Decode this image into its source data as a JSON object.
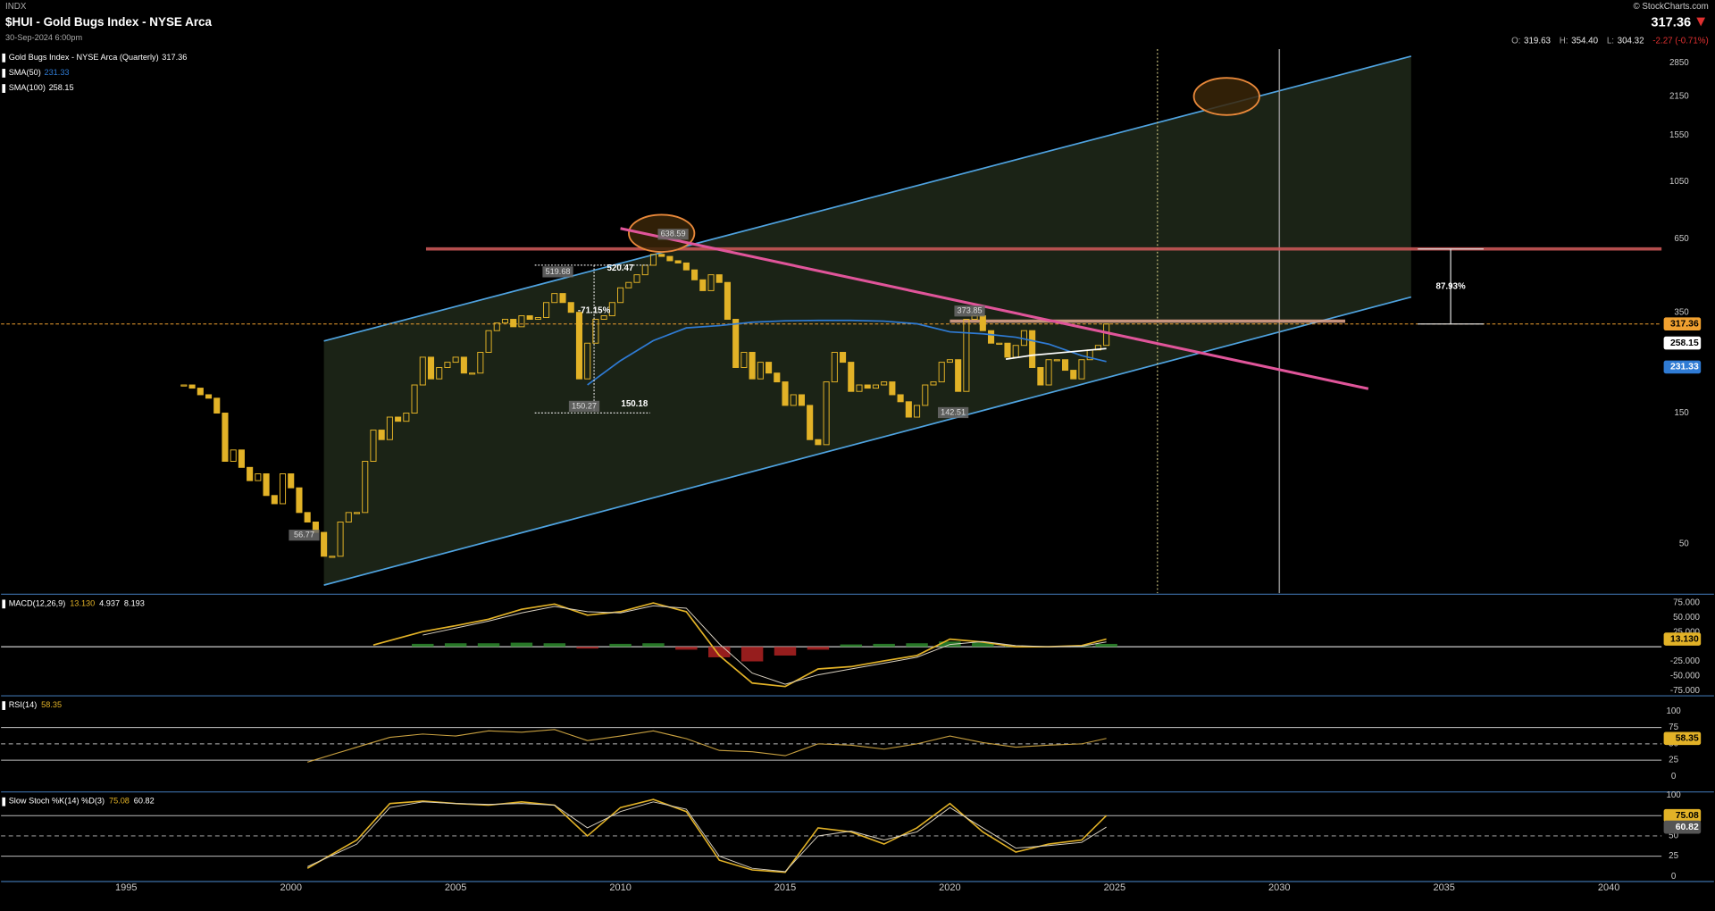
{
  "header": {
    "exchange": "INDX",
    "title": "$HUI - Gold Bugs Index - NYSE Arca",
    "date": "30-Sep-2024 6:00pm",
    "brand": "© StockCharts.com",
    "last": "317.36",
    "quote": [
      {
        "key": "O:",
        "text": "319.63"
      },
      {
        "key": "H:",
        "text": "354.40"
      },
      {
        "key": "L:",
        "text": "304.32"
      },
      {
        "key": "",
        "text": "-2.27 (-0.71%)",
        "down": true
      }
    ]
  },
  "chart_data": [
    {
      "type": "candlestick",
      "log": true,
      "xlim": [
        1991.2,
        2041.6
      ],
      "ylim": [
        33,
        3200
      ],
      "xticks": [
        1995,
        2000,
        2005,
        2010,
        2015,
        2020,
        2025,
        2030,
        2035,
        2040
      ],
      "yticks": [
        50,
        150,
        350,
        650,
        1050,
        1550,
        2150,
        2850
      ],
      "x": [
        1996.75,
        1997,
        1997.25,
        1997.5,
        1997.75,
        1998,
        1998.25,
        1998.5,
        1998.75,
        1999,
        1999.25,
        1999.5,
        1999.75,
        2000,
        2000.25,
        2000.5,
        2000.75,
        2001,
        2001.25,
        2001.5,
        2001.75,
        2002,
        2002.25,
        2002.5,
        2002.75,
        2003,
        2003.25,
        2003.5,
        2003.75,
        2004,
        2004.25,
        2004.5,
        2004.75,
        2005,
        2005.25,
        2005.5,
        2005.75,
        2006,
        2006.25,
        2006.5,
        2006.75,
        2007,
        2007.25,
        2007.5,
        2007.75,
        2008,
        2008.25,
        2008.5,
        2008.75,
        2009,
        2009.25,
        2009.5,
        2009.75,
        2010,
        2010.25,
        2010.5,
        2010.75,
        2011,
        2011.25,
        2011.5,
        2011.75,
        2012,
        2012.25,
        2012.5,
        2012.75,
        2013,
        2013.25,
        2013.5,
        2013.75,
        2014,
        2014.25,
        2014.5,
        2014.75,
        2015,
        2015.25,
        2015.5,
        2015.75,
        2016,
        2016.25,
        2016.5,
        2016.75,
        2017,
        2017.25,
        2017.5,
        2017.75,
        2018,
        2018.25,
        2018.5,
        2018.75,
        2019,
        2019.25,
        2019.5,
        2019.75,
        2020,
        2020.25,
        2020.5,
        2020.75,
        2021,
        2021.25,
        2021.5,
        2021.75,
        2022,
        2022.25,
        2022.5,
        2022.75,
        2023,
        2023.25,
        2023.5,
        2023.75,
        2024,
        2024.25,
        2024.5,
        2024.75
      ],
      "series": [
        {
          "name": "Gold Bugs Index - NYSE Arca (Quarterly)",
          "color": "#e2b227",
          "box_color": "#f0a030",
          "values": [
            190,
            185,
            175,
            170,
            150,
            100,
            110,
            95,
            85,
            90,
            75,
            70,
            90,
            80,
            65,
            60,
            55,
            45,
            45,
            60,
            65,
            65,
            100,
            130,
            120,
            145,
            140,
            150,
            190,
            240,
            200,
            220,
            230,
            240,
            210,
            210,
            250,
            300,
            320,
            330,
            310,
            340,
            330,
            335,
            380,
            410,
            380,
            350,
            200,
            270,
            330,
            340,
            380,
            430,
            450,
            480,
            520,
            570,
            560,
            540,
            530,
            500,
            460,
            420,
            480,
            450,
            330,
            220,
            250,
            200,
            230,
            210,
            195,
            160,
            175,
            160,
            120,
            115,
            195,
            250,
            230,
            180,
            190,
            185,
            190,
            195,
            175,
            165,
            145,
            160,
            190,
            195,
            230,
            235,
            180,
            330,
            340,
            300,
            270,
            270,
            240,
            265,
            300,
            220,
            190,
            235,
            235,
            215,
            200,
            235,
            255,
            265,
            317.36
          ]
        },
        {
          "name": "SMA(50)",
          "type": "line",
          "color": "#2f7bd4",
          "box_color": "#2f7bd4",
          "x": [
            2009,
            2010,
            2011,
            2012,
            2013,
            2014,
            2015,
            2016,
            2017,
            2018,
            2019,
            2020,
            2021,
            2022,
            2023,
            2024,
            2024.75
          ],
          "values": [
            190,
            233,
            276,
            307,
            313,
            322,
            326,
            327,
            327,
            325,
            318,
            297,
            292,
            284,
            268,
            243,
            231.33
          ]
        },
        {
          "name": "SMA(100)",
          "type": "line",
          "color": "#ffffff",
          "box_color": "#ffffff",
          "x": [
            2021.7,
            2022.5,
            2023.5,
            2024.75
          ],
          "values": [
            236,
            244,
            250,
            258.15
          ]
        }
      ],
      "channel": {
        "color": "#4fa3e0",
        "fill": "#1b2316",
        "upper": {
          "x": [
            2001,
            2034
          ],
          "y": [
            275,
            3015
          ]
        },
        "lower": {
          "x": [
            2001,
            2034
          ],
          "y": [
            35.3,
            398
          ]
        }
      },
      "trendlines": [
        {
          "x": [
            2010,
            2032.7
          ],
          "y": [
            709,
            184
          ],
          "color": "#e0559a"
        }
      ],
      "levels": [
        {
          "value": 596.4,
          "x": [
            2004.1,
            2041.6
          ],
          "color": "#c85656"
        },
        {
          "value": 325,
          "x": [
            2020,
            2032
          ],
          "color": "#d9a08a"
        }
      ],
      "vlines": [
        {
          "x": 2026.3,
          "color": "#c8c080",
          "dotted": true
        },
        {
          "x": 2030,
          "color": "#8a8a8a",
          "dotted": false
        }
      ],
      "highlights": [
        {
          "x": 2011.25,
          "y": 680
        },
        {
          "x": 2028.4,
          "y": 2150
        }
      ],
      "price_labels": [
        {
          "x": 2011.6,
          "value": 638.59
        },
        {
          "x": 2008.1,
          "value": 519.68
        },
        {
          "x": 2008.9,
          "value": 150.27
        },
        {
          "x": 2020.6,
          "value": 373.85
        },
        {
          "x": 2020.1,
          "value": 142.51
        },
        {
          "x": 2000.4,
          "value": 56.77
        }
      ],
      "measures": [
        {
          "x": 2009.2,
          "span": [
            2007.4,
            2010.9
          ],
          "from": 520.47,
          "to": 150.18,
          "label": "-71.15%",
          "end_labels": true
        },
        {
          "x": 2035.2,
          "span": [
            2034.2,
            2036.2
          ],
          "from": 317.36,
          "to": 596.4,
          "label": "87.93%",
          "end_labels": false
        }
      ]
    },
    {
      "type": "macd",
      "title": "MACD(12,26,9)",
      "ylim": [
        -82,
        88
      ],
      "yticks": [
        {
          "value": 75,
          "label": "75.000"
        },
        {
          "value": 50,
          "label": "50.000"
        },
        {
          "value": 25,
          "label": "25.000"
        },
        {
          "value": -25,
          "label": "-25.000"
        },
        {
          "value": -50,
          "label": "-50.000"
        },
        {
          "value": -75,
          "label": "-75.000"
        }
      ],
      "readout": [
        {
          "value": 13.13,
          "label": "13.130"
        },
        4.937,
        8.193
      ],
      "x": [
        2002.5,
        2004,
        2005,
        2006,
        2007,
        2008,
        2009,
        2010,
        2011,
        2012,
        2013,
        2014,
        2015,
        2016,
        2017,
        2018,
        2019,
        2020,
        2021,
        2022,
        2023,
        2024,
        2024.75
      ],
      "series": [
        {
          "type": "line",
          "color": "#e2b227",
          "width": 1.4,
          "values": [
            3,
            26,
            36,
            47,
            64,
            73,
            54,
            60,
            75,
            60,
            -15,
            -62,
            -68,
            -38,
            -34,
            -24,
            -15,
            13,
            8,
            0,
            0,
            2,
            13.13
          ],
          "box": {
            "value": 13.13,
            "label": "13.130"
          }
        },
        {
          "type": "line",
          "color": "#d8d0c0",
          "width": 0.8,
          "values": [
            null,
            20,
            32,
            44,
            58,
            69,
            60,
            58,
            70,
            66,
            5,
            -45,
            -64,
            -48,
            -38,
            -28,
            -18,
            4,
            9,
            2,
            0,
            1,
            8.19
          ]
        },
        {
          "type": "histogram",
          "up_color": "#2e8b2e",
          "down_color": "#b02222",
          "values": [
            null,
            5,
            6,
            6,
            7,
            6,
            -3,
            5,
            6,
            -5,
            -18,
            -25,
            -15,
            -5,
            4,
            5,
            6,
            9,
            7,
            1,
            0,
            1,
            4.937
          ]
        }
      ]
    },
    {
      "type": "oscillator",
      "title": "RSI(14)",
      "ylim": [
        -22,
        122
      ],
      "yticks": [
        100,
        75,
        50,
        25,
        0
      ],
      "guides": [
        {
          "value": 75,
          "dashed": false
        },
        {
          "value": 50,
          "dashed": true
        },
        {
          "value": 25,
          "dashed": false
        }
      ],
      "readout": [
        58.35
      ],
      "x": [
        2000.5,
        2002,
        2003,
        2004,
        2005,
        2006,
        2007,
        2008,
        2009,
        2010,
        2011,
        2012,
        2013,
        2014,
        2015,
        2016,
        2017,
        2018,
        2019,
        2020,
        2021,
        2022,
        2023,
        2024,
        2024.75
      ],
      "series": [
        {
          "type": "line",
          "color": "#c8a040",
          "width": 0.9,
          "values": [
            22,
            45,
            60,
            65,
            62,
            70,
            68,
            72,
            55,
            62,
            70,
            58,
            40,
            38,
            32,
            50,
            48,
            42,
            50,
            62,
            52,
            45,
            48,
            50,
            58.35
          ],
          "box_color": "#e2b227"
        }
      ]
    },
    {
      "type": "oscillator",
      "title": "Slow Stoch %K(14) %D(3)",
      "ylim": [
        -5,
        103
      ],
      "yticks": [
        100,
        75,
        50,
        25,
        0
      ],
      "guides": [
        {
          "value": 75,
          "dashed": false
        },
        {
          "value": 50,
          "dashed": true
        },
        {
          "value": 25,
          "dashed": false
        }
      ],
      "readout": [
        75.08,
        60.82
      ],
      "x": [
        2000.5,
        2002,
        2003,
        2004,
        2005,
        2006,
        2007,
        2008,
        2009,
        2010,
        2011,
        2012,
        2013,
        2014,
        2015,
        2016,
        2017,
        2018,
        2019,
        2020,
        2021,
        2022,
        2023,
        2024,
        2024.75
      ],
      "series": [
        {
          "type": "line",
          "color": "#e2b227",
          "width": 1.3,
          "values": [
            10,
            45,
            90,
            93,
            90,
            88,
            92,
            88,
            50,
            85,
            95,
            80,
            20,
            8,
            5,
            60,
            55,
            40,
            60,
            90,
            55,
            30,
            40,
            45,
            75.08
          ],
          "box_color": "#e2b227"
        },
        {
          "type": "line",
          "color": "#d8d0c0",
          "width": 0.8,
          "values": [
            12,
            40,
            85,
            92,
            90,
            89,
            90,
            88,
            60,
            80,
            92,
            83,
            25,
            10,
            6,
            50,
            56,
            45,
            55,
            85,
            60,
            35,
            38,
            42,
            60.82
          ],
          "box_color": "#555555"
        }
      ]
    }
  ]
}
